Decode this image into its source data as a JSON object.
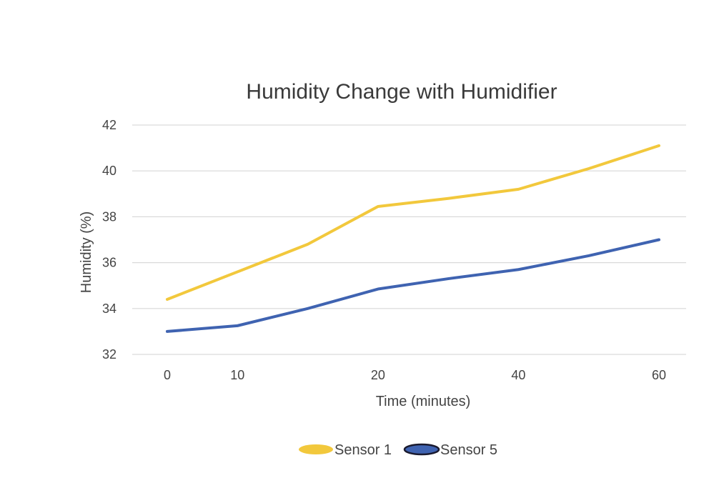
{
  "chart_data": {
    "type": "line",
    "title": "Humidity Change with Humidifier",
    "xlabel": "Time (minutes)",
    "ylabel": "Humidity (%)",
    "categories": [
      "0",
      "10",
      "",
      "20",
      "",
      "40",
      "",
      "60"
    ],
    "ylim": [
      32,
      42
    ],
    "yticks": [
      32,
      34,
      36,
      38,
      40,
      42
    ],
    "grid": true,
    "legend_position": "bottom",
    "series": [
      {
        "name": "Sensor 1",
        "color": "#f2c83c",
        "values": [
          34.4,
          35.6,
          36.8,
          38.45,
          38.8,
          39.2,
          40.1,
          41.1
        ]
      },
      {
        "name": "Sensor 5",
        "color": "#3f63b1",
        "values": [
          33.0,
          33.25,
          34.0,
          34.85,
          35.3,
          35.7,
          36.3,
          37.0
        ]
      }
    ]
  }
}
